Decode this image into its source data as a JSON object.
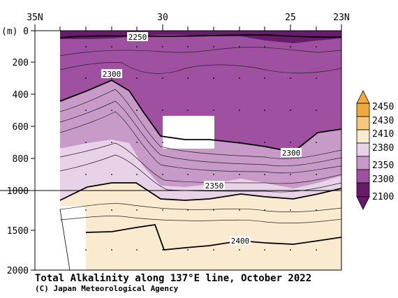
{
  "chart_data": {
    "type": "contour-section",
    "title": "Total Alkalinity along 137°E line, October 2022",
    "credit": "(C) Japan Meteorological Agency",
    "x_axis": {
      "label_top": "35N",
      "label_bottom_right": "23N",
      "ticks": [
        {
          "value": 35,
          "label": "35N"
        },
        {
          "value": 30,
          "label": "30"
        },
        {
          "value": 25,
          "label": "25"
        },
        {
          "value": 23,
          "label": "23N"
        }
      ],
      "range": [
        35,
        23
      ]
    },
    "y_axis": {
      "unit": "(m)",
      "ticks": [
        0,
        200,
        400,
        600,
        800,
        1000,
        1500,
        2000
      ],
      "range": [
        0,
        2000
      ],
      "break_at": 1000
    },
    "levels": [
      2100,
      2300,
      2350,
      2380,
      2410,
      2430,
      2450
    ],
    "colorbar": {
      "labels": [
        "2450",
        "2430",
        "2410",
        "2380",
        "2350",
        "2300",
        "2100"
      ],
      "colors": [
        "#f0a840",
        "#f5c880",
        "#faebd0",
        "#e8d2e8",
        "#c89ac8",
        "#a050a0",
        "#6a1a6a"
      ]
    },
    "contour_labels": [
      {
        "text": "2250"
      },
      {
        "text": "2300"
      },
      {
        "text": "2300"
      },
      {
        "text": "2350"
      },
      {
        "text": "2400"
      }
    ]
  }
}
